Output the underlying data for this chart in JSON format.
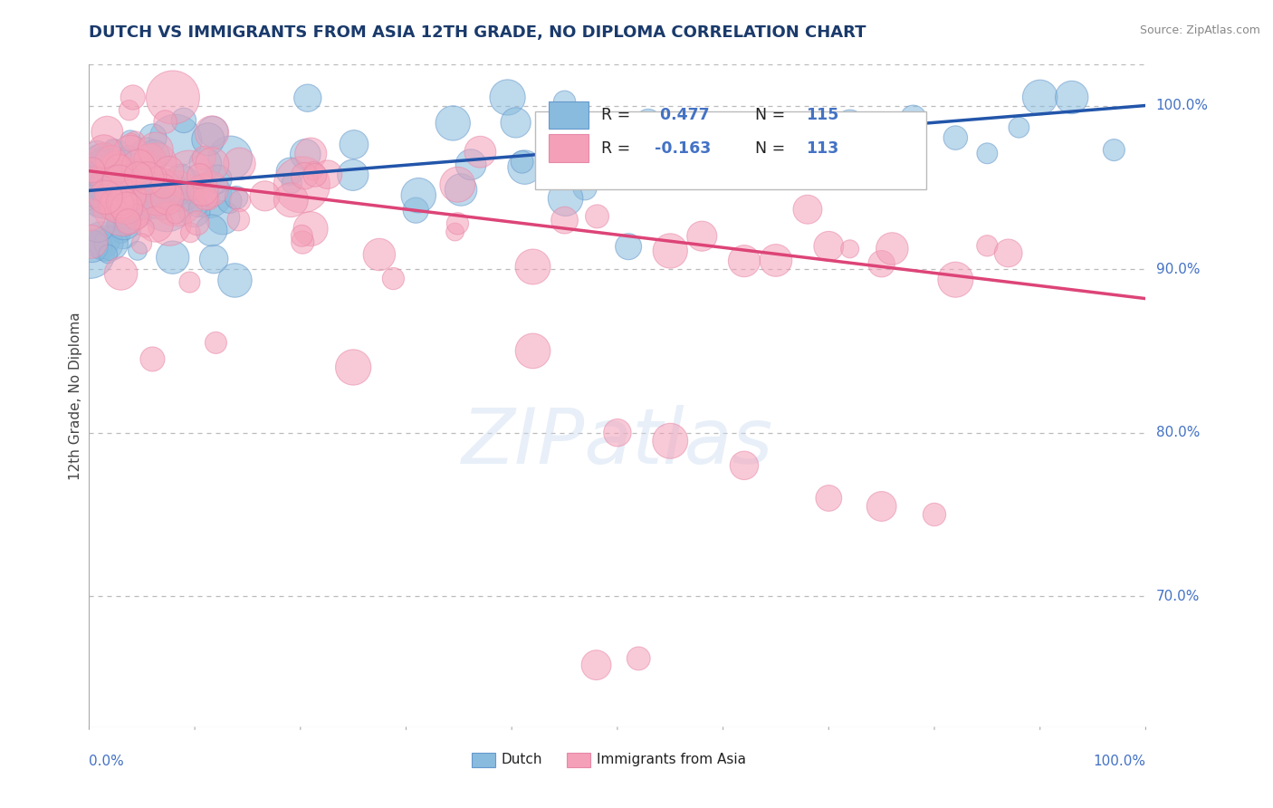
{
  "title": "DUTCH VS IMMIGRANTS FROM ASIA 12TH GRADE, NO DIPLOMA CORRELATION CHART",
  "source": "Source: ZipAtlas.com",
  "ylabel": "12th Grade, No Diploma",
  "xlim": [
    0.0,
    1.0
  ],
  "ylim": [
    0.62,
    1.025
  ],
  "yticks": [
    0.7,
    0.8,
    0.9,
    1.0
  ],
  "ytick_labels": [
    "70.0%",
    "80.0%",
    "90.0%",
    "100.0%"
  ],
  "blue_R": 0.477,
  "blue_N": 115,
  "pink_R": -0.163,
  "pink_N": 113,
  "blue_color": "#88bbdd",
  "pink_color": "#f4a0b8",
  "blue_edge_color": "#6699cc",
  "pink_edge_color": "#e888a8",
  "blue_line_color": "#2255aa",
  "pink_line_color": "#dd4477",
  "background_color": "#ffffff",
  "grid_color": "#bbbbbb",
  "title_color": "#1a3a6b",
  "axis_label_color": "#444444",
  "right_label_color": "#4472c4",
  "watermark": "ZIPatlas",
  "blue_trend_x0": 0.0,
  "blue_trend_y0": 0.948,
  "blue_trend_x1": 1.0,
  "blue_trend_y1": 1.0,
  "pink_trend_x0": 0.0,
  "pink_trend_y0": 0.96,
  "pink_trend_x1": 1.0,
  "pink_trend_y1": 0.882
}
